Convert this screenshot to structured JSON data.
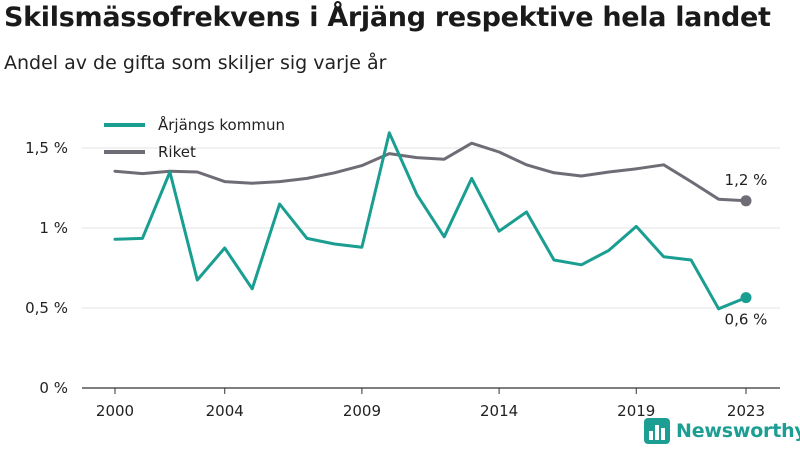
{
  "header": {
    "title": "Skilsmässofrekvens i Årjäng respektive hela landet",
    "subtitle": "Andel av de gifta som skiljer sig varje år"
  },
  "brand": {
    "name": "Newsworthy",
    "icon": "bar-chart-logo-icon",
    "color": "#1d9e93"
  },
  "chart_data": {
    "type": "line",
    "title": "Skilsmässofrekvens i Årjäng respektive hela landet",
    "subtitle": "Andel av de gifta som skiljer sig varje år",
    "xlabel": "",
    "ylabel": "",
    "x": [
      2000,
      2001,
      2002,
      2003,
      2004,
      2005,
      2006,
      2007,
      2008,
      2009,
      2010,
      2011,
      2012,
      2013,
      2014,
      2015,
      2016,
      2017,
      2018,
      2019,
      2020,
      2021,
      2022,
      2023
    ],
    "xlim": [
      1999,
      2024
    ],
    "ylim": [
      0,
      1.7
    ],
    "x_ticks": [
      2000,
      2004,
      2009,
      2014,
      2019,
      2023
    ],
    "x_tick_labels": [
      "2000",
      "2004",
      "2009",
      "2014",
      "2019",
      "2023"
    ],
    "y_ticks": [
      0,
      0.5,
      1,
      1.5
    ],
    "y_tick_labels": [
      "0 %",
      "0,5 %",
      "1 %",
      "1,5 %"
    ],
    "grid": "horizontal",
    "legend_position": "top-left",
    "series": [
      {
        "name": "Årjängs kommun",
        "color": "#1a9e91",
        "end_label": "0,6 %",
        "values": [
          0.93,
          0.935,
          1.35,
          0.675,
          0.875,
          0.62,
          1.15,
          0.935,
          0.9,
          0.88,
          1.595,
          1.21,
          0.945,
          1.31,
          0.98,
          1.1,
          0.8,
          0.77,
          0.86,
          1.01,
          0.82,
          0.8,
          0.495,
          0.565
        ]
      },
      {
        "name": "Riket",
        "color": "#6f6c75",
        "end_label": "1,2 %",
        "values": [
          1.355,
          1.34,
          1.355,
          1.35,
          1.29,
          1.28,
          1.29,
          1.31,
          1.345,
          1.39,
          1.465,
          1.44,
          1.43,
          1.53,
          1.475,
          1.395,
          1.345,
          1.325,
          1.35,
          1.37,
          1.395,
          1.29,
          1.18,
          1.17
        ]
      }
    ]
  }
}
